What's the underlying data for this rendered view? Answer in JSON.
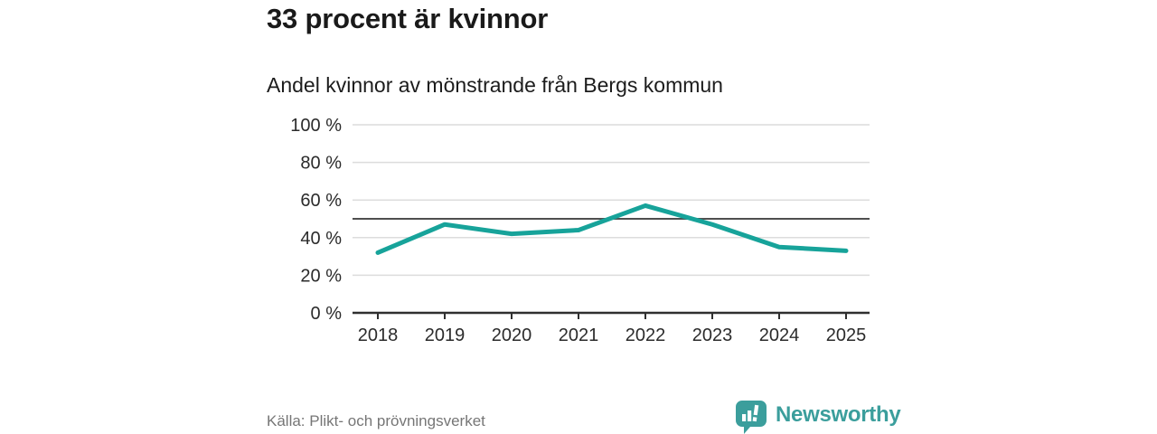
{
  "header": {
    "title": "33 procent är kvinnor",
    "subtitle": "Andel kvinnor av mönstrande från Bergs kommun"
  },
  "footer": {
    "source": "Källa: Plikt- och prövningsverket",
    "brand": "Newsworthy"
  },
  "colors": {
    "line": "#17a39a",
    "grid": "#dcdcdc",
    "reference": "#4f4f4f",
    "axis": "#2f2f2f",
    "tick_text": "#2b2b2b",
    "brand": "#3b9e9c"
  },
  "chart_data": {
    "type": "line",
    "title": "Andel kvinnor av mönstrande från Bergs kommun",
    "x": [
      2018,
      2019,
      2020,
      2021,
      2022,
      2023,
      2024,
      2025
    ],
    "series": [
      {
        "name": "Andel kvinnor",
        "values": [
          32,
          47,
          42,
          44,
          57,
          47,
          35,
          33
        ]
      }
    ],
    "xlabel": "",
    "ylabel": "",
    "ylim": [
      0,
      100
    ],
    "yticks": [
      0,
      20,
      40,
      60,
      80,
      100
    ],
    "ytick_format": "{v} %",
    "reference_line": 50,
    "grid": "horizontal",
    "legend": "none"
  }
}
